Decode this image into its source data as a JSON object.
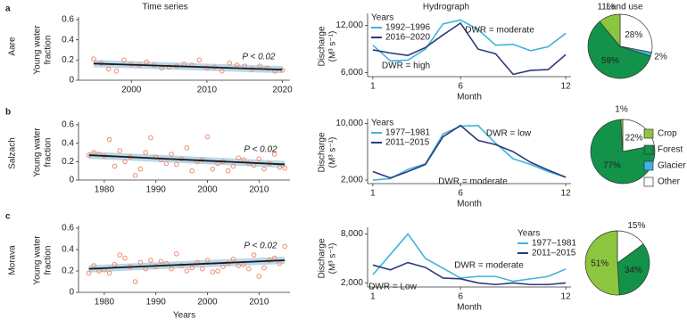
{
  "column_titles": [
    "Time series",
    "Hydrograph",
    "Land use"
  ],
  "rows": [
    {
      "letter": "a",
      "name": "Aare"
    },
    {
      "letter": "b",
      "name": "Salzach"
    },
    {
      "letter": "c",
      "name": "Morava"
    }
  ],
  "land_use_legend": [
    {
      "name": "Crop",
      "color": "#8cc63f"
    },
    {
      "name": "Forest",
      "color": "#13924a"
    },
    {
      "name": "Glacier",
      "color": "#3fb3e3"
    },
    {
      "name": "Other",
      "color": "#ffffff"
    }
  ],
  "chart_data": [
    {
      "type": "scatter",
      "ylabel": [
        "Young water",
        "fraction"
      ],
      "annotation": "P < 0.02",
      "color": "#f08a6c",
      "trend_color": "#1a1a1a",
      "x": [
        1995,
        1996,
        1997,
        1998,
        1999,
        2000,
        2001,
        2002,
        2003,
        2004,
        2005,
        2006,
        2007,
        2008,
        2009,
        2010,
        2011,
        2012,
        2013,
        2014,
        2015,
        2016,
        2017,
        2018,
        2019,
        2020
      ],
      "values": [
        0.21,
        0.17,
        0.11,
        0.09,
        0.2,
        0.16,
        0.15,
        0.18,
        0.15,
        0.12,
        0.13,
        0.14,
        0.16,
        0.15,
        0.2,
        0.12,
        0.13,
        0.09,
        0.17,
        0.15,
        0.14,
        0.11,
        0.14,
        0.12,
        0.09,
        0.1
      ],
      "trend": {
        "x": [
          1995,
          2020
        ],
        "values": [
          0.165,
          0.105
        ]
      },
      "xlim": [
        1993,
        2021
      ],
      "xticks": [
        2000,
        2010,
        2020
      ],
      "ylim": [
        0,
        0.6
      ],
      "yticks": [
        0,
        0.2,
        0.4,
        0.6
      ]
    },
    {
      "type": "line",
      "ylabel": [
        "Discharge",
        "(M³ s⁻¹)"
      ],
      "xlabel": "Month",
      "legend_title": "Years",
      "annotations": [
        "DWR = moderate",
        "DWR = high"
      ],
      "x": [
        1,
        2,
        3,
        4,
        5,
        6,
        7,
        8,
        9,
        10,
        11,
        12
      ],
      "series": [
        {
          "name": "1992–1996",
          "color": "#3db5dc",
          "values": [
            9500,
            7500,
            7600,
            9000,
            12200,
            12700,
            11500,
            9500,
            9600,
            8800,
            9300,
            11000
          ]
        },
        {
          "name": "2016–2020",
          "color": "#2d3a7c",
          "values": [
            8900,
            8500,
            8200,
            9200,
            10800,
            12300,
            9000,
            8400,
            5800,
            6300,
            6400,
            8300
          ]
        }
      ],
      "xlim": [
        0.7,
        12.3
      ],
      "xticks": [
        1,
        6,
        12
      ],
      "ylim": [
        5500,
        13200
      ],
      "yticks": [
        {
          "value": 6000,
          "label": "6,000"
        },
        {
          "value": 12000,
          "label": "12,000"
        }
      ]
    },
    {
      "type": "pie",
      "categories": [
        "Other",
        "Glacier",
        "Forest",
        "Crop"
      ],
      "values": [
        28,
        2,
        59,
        11
      ],
      "value_labels": [
        "28%",
        "2%",
        "59%",
        "11%"
      ]
    },
    {
      "type": "scatter",
      "ylabel": [
        "Young water",
        "fraction"
      ],
      "annotation": "P < 0.02",
      "color": "#f08a6c",
      "trend_color": "#1a1a1a",
      "x": [
        1977,
        1978,
        1979,
        1980,
        1981,
        1982,
        1983,
        1984,
        1985,
        1986,
        1987,
        1988,
        1989,
        1990,
        1991,
        1992,
        1993,
        1994,
        1995,
        1996,
        1997,
        1998,
        1999,
        2000,
        2001,
        2002,
        2003,
        2004,
        2005,
        2006,
        2007,
        2008,
        2009,
        2010,
        2011,
        2012,
        2013,
        2014,
        2015
      ],
      "values": [
        0.27,
        0.3,
        0.28,
        0.26,
        0.44,
        0.15,
        0.32,
        0.2,
        0.25,
        0.05,
        0.12,
        0.3,
        0.46,
        0.25,
        0.22,
        0.18,
        0.28,
        0.17,
        0.23,
        0.35,
        0.1,
        0.2,
        0.22,
        0.47,
        0.12,
        0.18,
        0.2,
        0.1,
        0.15,
        0.24,
        0.22,
        0.18,
        0.16,
        0.23,
        0.12,
        0.18,
        0.28,
        0.14,
        0.13
      ],
      "trend": {
        "x": [
          1977,
          2015
        ],
        "values": [
          0.27,
          0.17
        ]
      },
      "xlim": [
        1975,
        2016
      ],
      "xticks": [
        1980,
        1990,
        2000,
        2010
      ],
      "ylim": [
        0,
        0.6
      ],
      "yticks": [
        0,
        0.2,
        0.4,
        0.6
      ]
    },
    {
      "type": "line",
      "ylabel": [
        "Discharge",
        "(M³ s⁻¹)"
      ],
      "xlabel": "Month",
      "legend_title": "Years",
      "annotations": [
        "DWR = low",
        "DWR = moderate"
      ],
      "x": [
        1,
        2,
        3,
        4,
        5,
        6,
        7,
        8,
        9,
        10,
        11,
        12
      ],
      "series": [
        {
          "name": "1977–1981",
          "color": "#3db5dc",
          "values": [
            2000,
            2200,
            3500,
            4300,
            8500,
            9600,
            9700,
            7200,
            5000,
            4200,
            3200,
            2400
          ]
        },
        {
          "name": "2011–2015",
          "color": "#2d3a7c",
          "values": [
            3200,
            2300,
            3200,
            4200,
            8100,
            9700,
            7600,
            7000,
            6000,
            4500,
            3400,
            2400
          ]
        }
      ],
      "xlim": [
        0.7,
        12.3
      ],
      "xticks": [
        1,
        6,
        12
      ],
      "ylim": [
        1500,
        10300
      ],
      "yticks": [
        {
          "value": 2000,
          "label": "2,000"
        },
        {
          "value": 10000,
          "label": "10,000"
        }
      ]
    },
    {
      "type": "pie",
      "categories": [
        "Other",
        "Forest",
        "Crop"
      ],
      "values": [
        22,
        77,
        1
      ],
      "value_labels": [
        "22%",
        "77%",
        "1%"
      ]
    },
    {
      "type": "scatter",
      "ylabel": [
        "Young water",
        "fraction"
      ],
      "xlabel": "Years",
      "annotation": "P < 0.02",
      "color": "#f08a6c",
      "trend_color": "#1a1a1a",
      "x": [
        1977,
        1978,
        1979,
        1980,
        1981,
        1982,
        1983,
        1984,
        1985,
        1986,
        1987,
        1988,
        1989,
        1990,
        1991,
        1992,
        1993,
        1994,
        1995,
        1996,
        1997,
        1998,
        1999,
        2000,
        2001,
        2002,
        2003,
        2004,
        2005,
        2006,
        2007,
        2008,
        2009,
        2010,
        2011,
        2012,
        2013,
        2014,
        2015
      ],
      "values": [
        0.18,
        0.25,
        0.2,
        0.21,
        0.18,
        0.26,
        0.35,
        0.32,
        0.24,
        0.1,
        0.28,
        0.22,
        0.3,
        0.24,
        0.29,
        0.27,
        0.22,
        0.36,
        0.25,
        0.2,
        0.23,
        0.28,
        0.22,
        0.3,
        0.19,
        0.2,
        0.24,
        0.27,
        0.31,
        0.25,
        0.26,
        0.22,
        0.35,
        0.15,
        0.23,
        0.3,
        0.32,
        0.27,
        0.43
      ],
      "trend": {
        "x": [
          1977,
          2015
        ],
        "values": [
          0.22,
          0.3
        ]
      },
      "xlim": [
        1975,
        2016
      ],
      "xticks": [
        1980,
        1990,
        2000,
        2010
      ],
      "ylim": [
        0,
        0.6
      ],
      "yticks": [
        0,
        0.2,
        0.4,
        0.6
      ]
    },
    {
      "type": "line",
      "ylabel": [
        "Discharge",
        "(M³ s⁻¹)"
      ],
      "xlabel": "Month",
      "legend_title": "Years",
      "annotations": [
        "DWR = moderate",
        "DWR = Low"
      ],
      "x": [
        1,
        2,
        3,
        4,
        5,
        6,
        7,
        8,
        9,
        10,
        11,
        12
      ],
      "series": [
        {
          "name": "1977–1981",
          "color": "#3db5dc",
          "values": [
            3000,
            5500,
            8000,
            5000,
            3800,
            2600,
            2800,
            2800,
            2200,
            2500,
            2800,
            3700
          ]
        },
        {
          "name": "2011–2015",
          "color": "#2d3a7c",
          "values": [
            4200,
            3600,
            4500,
            3900,
            2600,
            2500,
            2000,
            1800,
            2000,
            1800,
            1800,
            2000
          ]
        }
      ],
      "xlim": [
        0.7,
        12.3
      ],
      "xticks": [
        1,
        6,
        12
      ],
      "ylim": [
        1500,
        8500
      ],
      "yticks": [
        {
          "value": 2000,
          "label": "2,000"
        },
        {
          "value": 8000,
          "label": "8,000"
        }
      ]
    },
    {
      "type": "pie",
      "categories": [
        "Other",
        "Forest",
        "Crop"
      ],
      "values": [
        15,
        34,
        51
      ],
      "value_labels": [
        "15%",
        "34%",
        "51%"
      ]
    }
  ]
}
